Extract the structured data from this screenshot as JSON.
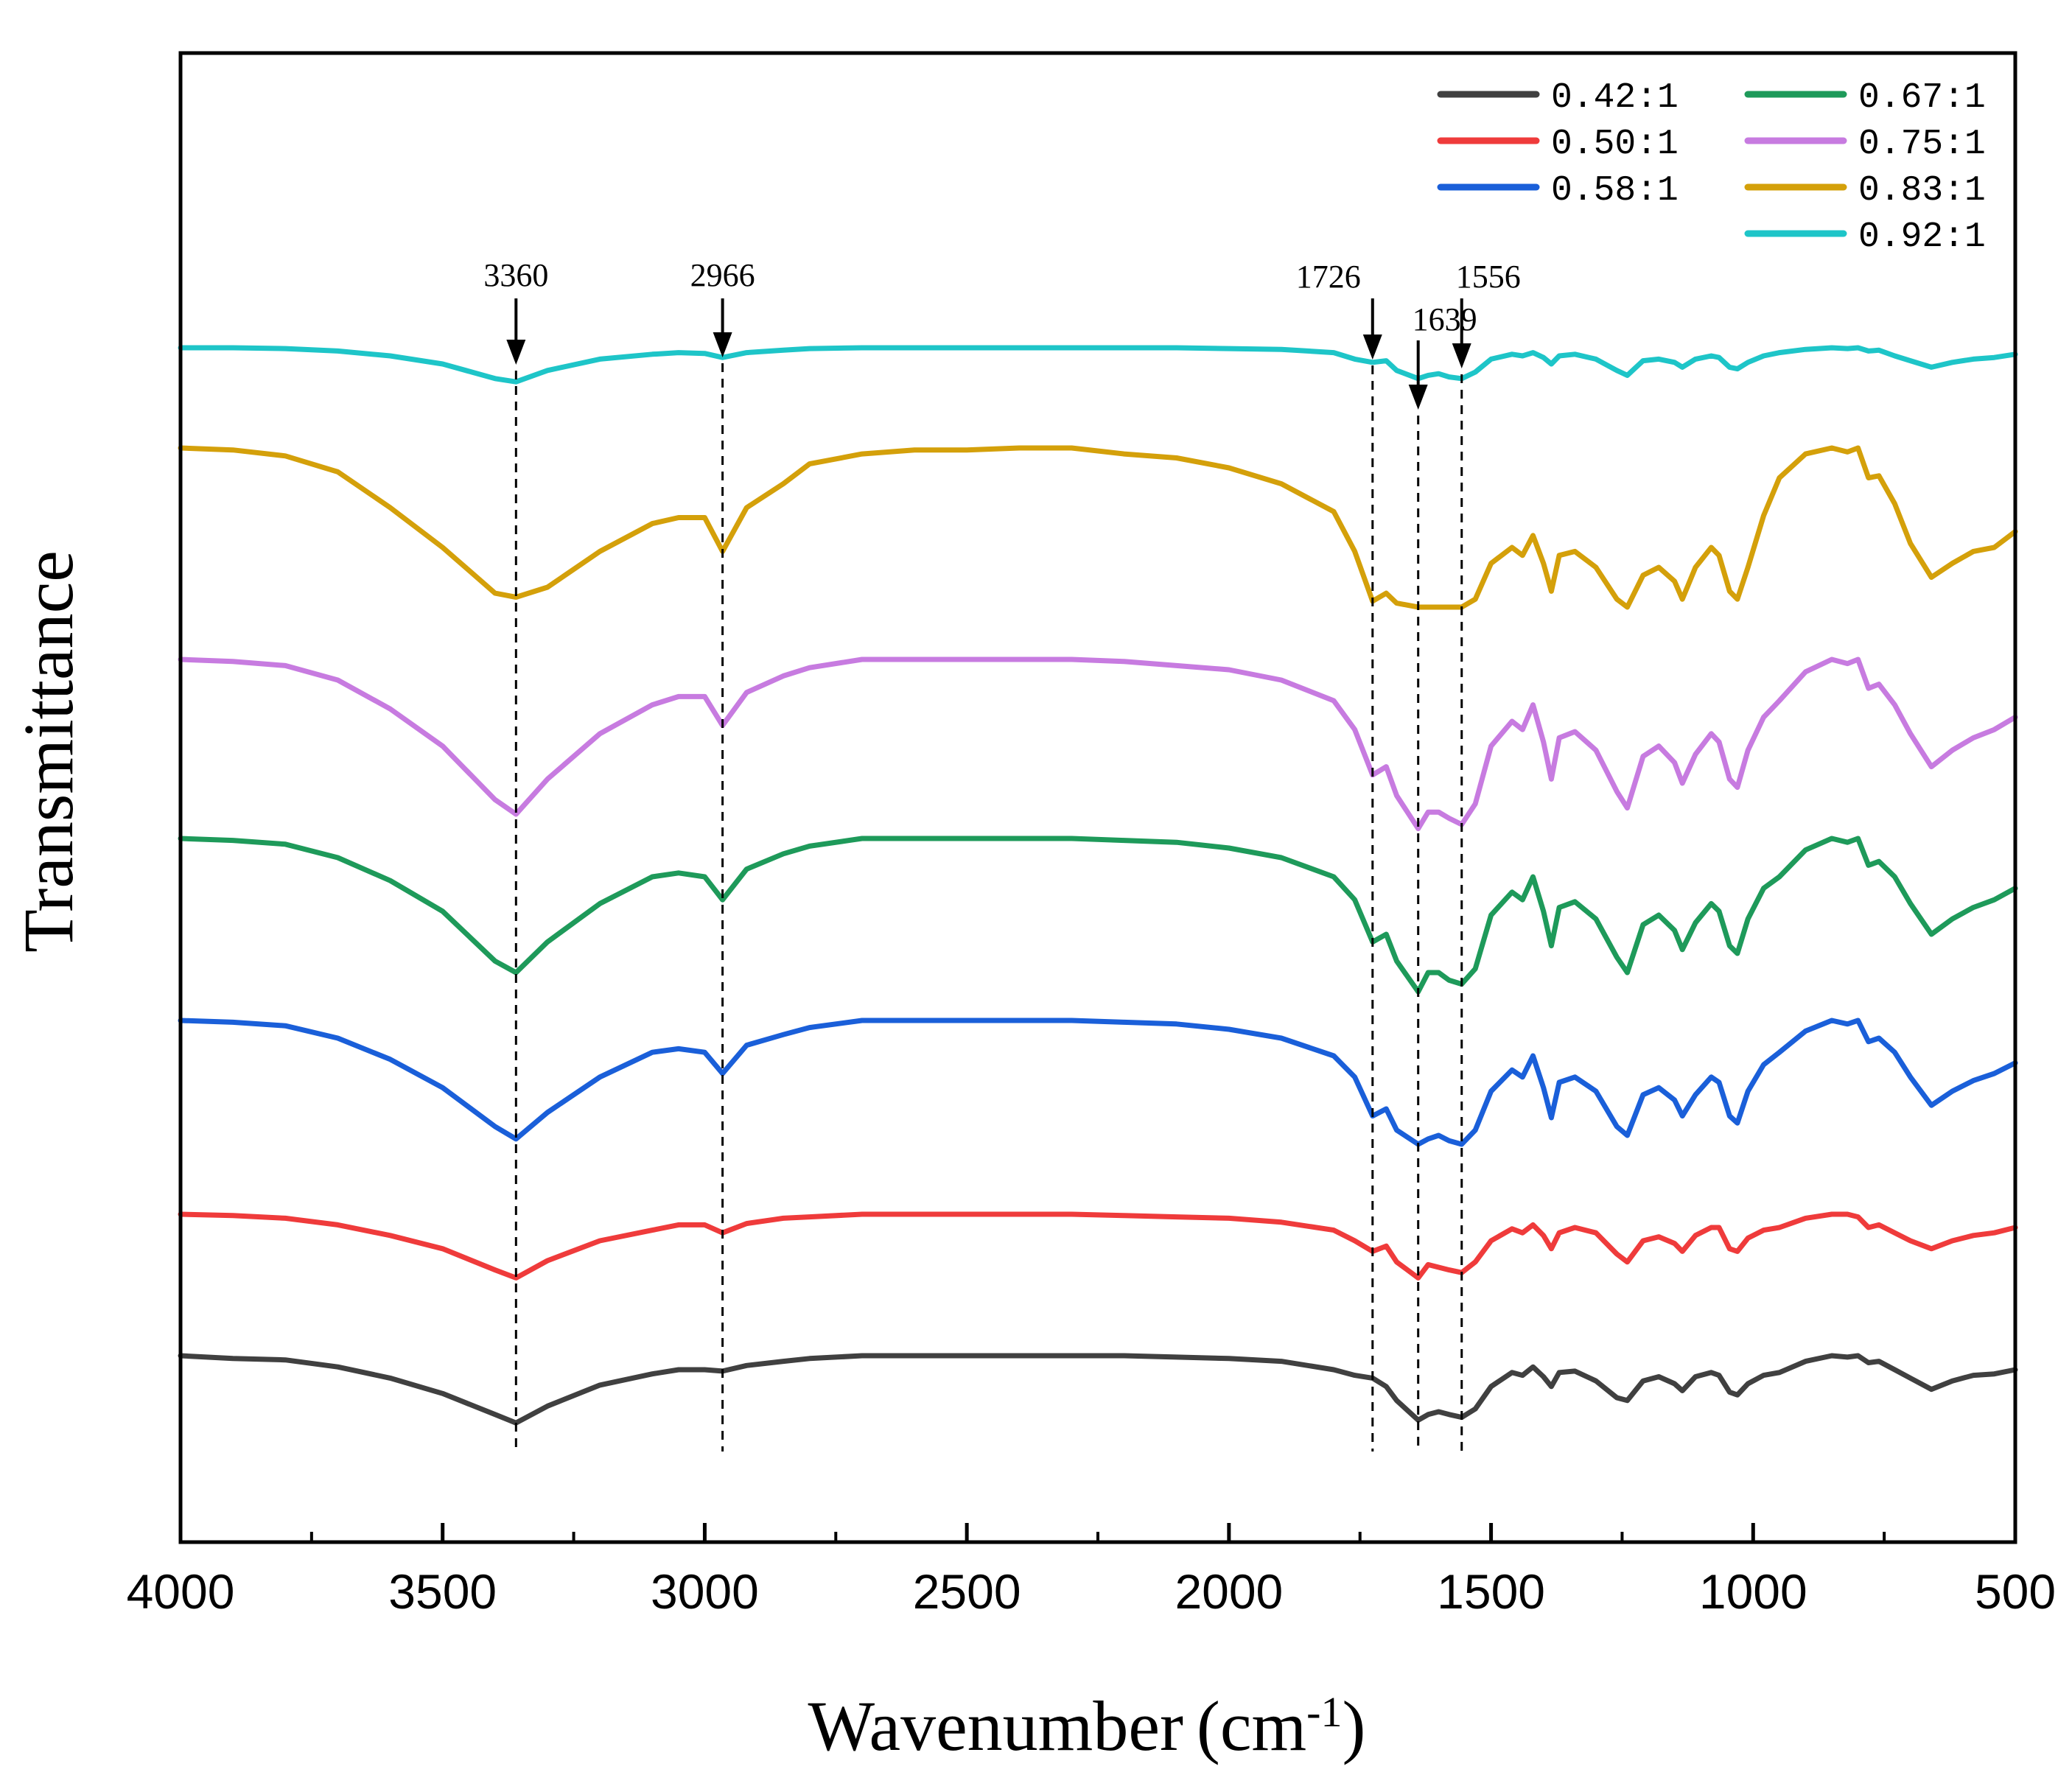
{
  "chart_data": {
    "type": "line",
    "title": "",
    "xlabel": "Wavenumber",
    "xlabel_unit_base": "cm",
    "xlabel_unit_exp": "-1",
    "ylabel": "Transmittance",
    "xlim": [
      4000,
      500
    ],
    "x_ticks": [
      4000,
      3500,
      3000,
      2500,
      2000,
      1500,
      1000,
      500
    ],
    "x_tick_labels": [
      "4000",
      "3500",
      "3000",
      "2500",
      "2000",
      "1500",
      "1000",
      "500"
    ],
    "y_ticks_shown": false,
    "grid": false,
    "legend_position": "top-right",
    "x_domain": [
      4000,
      3900,
      3800,
      3700,
      3600,
      3500,
      3400,
      3360,
      3300,
      3200,
      3100,
      3050,
      3000,
      2966,
      2920,
      2850,
      2800,
      2700,
      2600,
      2500,
      2400,
      2300,
      2200,
      2100,
      2000,
      1900,
      1800,
      1760,
      1726,
      1700,
      1680,
      1639,
      1620,
      1600,
      1580,
      1556,
      1530,
      1500,
      1460,
      1440,
      1420,
      1400,
      1385,
      1370,
      1340,
      1300,
      1260,
      1240,
      1210,
      1180,
      1150,
      1135,
      1110,
      1080,
      1065,
      1045,
      1030,
      1010,
      980,
      950,
      900,
      850,
      820,
      800,
      780,
      760,
      730,
      700,
      660,
      620,
      580,
      540,
      500
    ],
    "series": [
      {
        "name": "0.42:1",
        "color": "#404040",
        "values": [
          1.0,
          0.98,
          0.97,
          0.92,
          0.84,
          0.73,
          0.58,
          0.52,
          0.64,
          0.79,
          0.87,
          0.9,
          0.9,
          0.89,
          0.93,
          0.96,
          0.98,
          1.0,
          1.0,
          1.0,
          1.0,
          1.0,
          1.0,
          0.99,
          0.98,
          0.96,
          0.9,
          0.86,
          0.84,
          0.78,
          0.68,
          0.54,
          0.58,
          0.6,
          0.58,
          0.56,
          0.62,
          0.78,
          0.88,
          0.86,
          0.92,
          0.85,
          0.78,
          0.88,
          0.89,
          0.82,
          0.7,
          0.68,
          0.82,
          0.85,
          0.8,
          0.75,
          0.85,
          0.88,
          0.86,
          0.74,
          0.72,
          0.8,
          0.86,
          0.88,
          0.96,
          1.0,
          0.99,
          1.0,
          0.95,
          0.96,
          0.9,
          0.84,
          0.76,
          0.82,
          0.86,
          0.87,
          0.9
        ]
      },
      {
        "name": "0.50:1",
        "color": "#ef3b3b",
        "values": [
          1.0,
          0.99,
          0.97,
          0.92,
          0.84,
          0.74,
          0.58,
          0.52,
          0.65,
          0.8,
          0.88,
          0.92,
          0.92,
          0.86,
          0.93,
          0.97,
          0.98,
          1.0,
          1.0,
          1.0,
          1.0,
          1.0,
          0.99,
          0.98,
          0.97,
          0.94,
          0.88,
          0.8,
          0.72,
          0.76,
          0.64,
          0.52,
          0.62,
          0.6,
          0.58,
          0.56,
          0.64,
          0.8,
          0.89,
          0.86,
          0.92,
          0.84,
          0.74,
          0.86,
          0.9,
          0.86,
          0.7,
          0.64,
          0.8,
          0.83,
          0.78,
          0.72,
          0.84,
          0.9,
          0.9,
          0.74,
          0.72,
          0.82,
          0.88,
          0.9,
          0.97,
          1.0,
          1.0,
          0.98,
          0.9,
          0.92,
          0.86,
          0.8,
          0.74,
          0.8,
          0.84,
          0.86,
          0.9
        ]
      },
      {
        "name": "0.58:1",
        "color": "#1a5fd9",
        "values": [
          1.0,
          0.99,
          0.97,
          0.9,
          0.78,
          0.62,
          0.4,
          0.33,
          0.48,
          0.68,
          0.82,
          0.84,
          0.82,
          0.7,
          0.86,
          0.92,
          0.96,
          1.0,
          1.0,
          1.0,
          1.0,
          1.0,
          0.99,
          0.98,
          0.95,
          0.9,
          0.8,
          0.68,
          0.46,
          0.5,
          0.38,
          0.3,
          0.33,
          0.35,
          0.32,
          0.3,
          0.38,
          0.6,
          0.72,
          0.68,
          0.8,
          0.62,
          0.45,
          0.65,
          0.68,
          0.6,
          0.4,
          0.35,
          0.58,
          0.62,
          0.55,
          0.46,
          0.58,
          0.68,
          0.65,
          0.46,
          0.42,
          0.6,
          0.75,
          0.82,
          0.94,
          1.0,
          0.98,
          1.0,
          0.88,
          0.9,
          0.82,
          0.68,
          0.52,
          0.6,
          0.66,
          0.7,
          0.76
        ]
      },
      {
        "name": "0.67:1",
        "color": "#1e9a5a",
        "values": [
          1.0,
          0.99,
          0.97,
          0.9,
          0.78,
          0.62,
          0.36,
          0.3,
          0.46,
          0.66,
          0.8,
          0.82,
          0.8,
          0.68,
          0.84,
          0.92,
          0.96,
          1.0,
          1.0,
          1.0,
          1.0,
          1.0,
          0.99,
          0.98,
          0.95,
          0.9,
          0.8,
          0.68,
          0.46,
          0.5,
          0.36,
          0.2,
          0.3,
          0.3,
          0.26,
          0.24,
          0.32,
          0.6,
          0.72,
          0.68,
          0.8,
          0.62,
          0.44,
          0.64,
          0.67,
          0.58,
          0.38,
          0.3,
          0.55,
          0.6,
          0.52,
          0.42,
          0.56,
          0.66,
          0.62,
          0.44,
          0.4,
          0.58,
          0.74,
          0.8,
          0.94,
          1.0,
          0.98,
          1.0,
          0.86,
          0.88,
          0.8,
          0.66,
          0.5,
          0.58,
          0.64,
          0.68,
          0.74
        ]
      },
      {
        "name": "0.75:1",
        "color": "#c77be0",
        "values": [
          1.0,
          0.99,
          0.97,
          0.9,
          0.76,
          0.58,
          0.32,
          0.25,
          0.42,
          0.64,
          0.78,
          0.82,
          0.82,
          0.68,
          0.84,
          0.92,
          0.96,
          1.0,
          1.0,
          1.0,
          1.0,
          1.0,
          0.99,
          0.97,
          0.95,
          0.9,
          0.8,
          0.66,
          0.44,
          0.48,
          0.34,
          0.18,
          0.26,
          0.26,
          0.23,
          0.2,
          0.3,
          0.58,
          0.7,
          0.66,
          0.78,
          0.6,
          0.42,
          0.62,
          0.65,
          0.56,
          0.36,
          0.28,
          0.53,
          0.58,
          0.5,
          0.4,
          0.54,
          0.64,
          0.6,
          0.42,
          0.38,
          0.56,
          0.72,
          0.8,
          0.94,
          1.0,
          0.98,
          1.0,
          0.86,
          0.88,
          0.78,
          0.64,
          0.48,
          0.56,
          0.62,
          0.66,
          0.72
        ]
      },
      {
        "name": "0.83:1",
        "color": "#d4a00a",
        "values": [
          1.0,
          0.99,
          0.96,
          0.88,
          0.7,
          0.5,
          0.27,
          0.25,
          0.3,
          0.48,
          0.62,
          0.65,
          0.65,
          0.48,
          0.7,
          0.82,
          0.92,
          0.97,
          0.99,
          0.99,
          1.0,
          1.0,
          0.97,
          0.95,
          0.9,
          0.82,
          0.68,
          0.48,
          0.23,
          0.27,
          0.22,
          0.2,
          0.2,
          0.2,
          0.2,
          0.2,
          0.24,
          0.42,
          0.5,
          0.46,
          0.56,
          0.42,
          0.28,
          0.46,
          0.48,
          0.4,
          0.24,
          0.2,
          0.36,
          0.4,
          0.33,
          0.24,
          0.4,
          0.5,
          0.46,
          0.28,
          0.24,
          0.4,
          0.66,
          0.85,
          0.97,
          1.0,
          0.98,
          1.0,
          0.85,
          0.86,
          0.72,
          0.52,
          0.35,
          0.42,
          0.48,
          0.5,
          0.58
        ]
      },
      {
        "name": "0.92:1",
        "color": "#1ec5c8",
        "values": [
          1.0,
          1.0,
          0.99,
          0.96,
          0.9,
          0.8,
          0.62,
          0.58,
          0.72,
          0.86,
          0.92,
          0.94,
          0.93,
          0.88,
          0.94,
          0.97,
          0.99,
          1.0,
          1.0,
          1.0,
          1.0,
          1.0,
          1.0,
          1.0,
          0.99,
          0.98,
          0.94,
          0.86,
          0.82,
          0.84,
          0.72,
          0.62,
          0.66,
          0.68,
          0.64,
          0.62,
          0.7,
          0.86,
          0.92,
          0.9,
          0.94,
          0.88,
          0.8,
          0.9,
          0.92,
          0.86,
          0.72,
          0.66,
          0.84,
          0.86,
          0.82,
          0.76,
          0.86,
          0.9,
          0.88,
          0.76,
          0.74,
          0.82,
          0.9,
          0.94,
          0.98,
          1.0,
          0.99,
          1.0,
          0.96,
          0.97,
          0.9,
          0.84,
          0.76,
          0.82,
          0.86,
          0.88,
          0.92
        ]
      }
    ],
    "annotations": [
      {
        "label": "3360",
        "x": 3360
      },
      {
        "label": "2966",
        "x": 2966
      },
      {
        "label": "1726",
        "x": 1726
      },
      {
        "label": "1639",
        "x": 1639
      },
      {
        "label": "1556",
        "x": 1556
      }
    ]
  }
}
